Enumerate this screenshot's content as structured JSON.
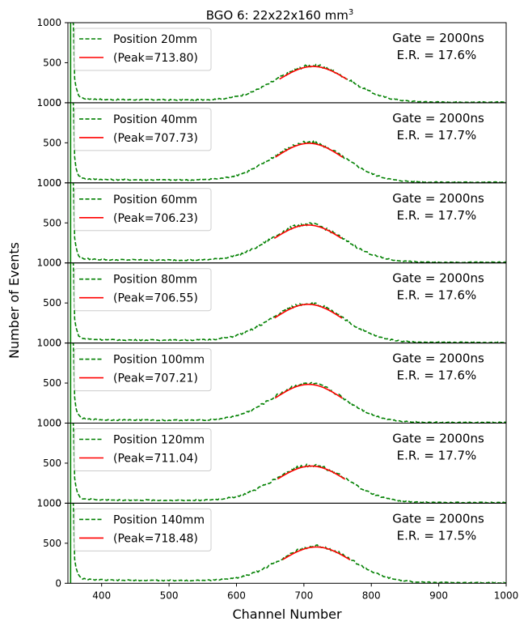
{
  "chart_data": {
    "type": "line",
    "title": "BGO 6: 22x22x160 mm",
    "title_superscript": "3",
    "xlabel": "Channel Number",
    "ylabel": "Number of Events",
    "xlim": [
      350,
      1000
    ],
    "ylim": [
      0,
      1000
    ],
    "x_ticks": [
      400,
      500,
      600,
      700,
      800,
      900,
      1000
    ],
    "y_ticks": [
      0,
      500,
      1000
    ],
    "legend_position": "top-left",
    "colors": {
      "data": "#008000",
      "fit": "#ff0000"
    },
    "panels": [
      {
        "position_label": "Position 20mm",
        "peak_label": "(Peak=713.80)",
        "peak": 713.8,
        "gate_label": "Gate = 2000ns",
        "er_label": "E.R. = 17.6%",
        "amplitude": 450,
        "sigma": 53.4
      },
      {
        "position_label": "Position 40mm",
        "peak_label": "(Peak=707.73)",
        "peak": 707.73,
        "gate_label": "Gate = 2000ns",
        "er_label": "E.R. = 17.7%",
        "amplitude": 490,
        "sigma": 53.2
      },
      {
        "position_label": "Position 60mm",
        "peak_label": "(Peak=706.23)",
        "peak": 706.23,
        "gate_label": "Gate = 2000ns",
        "er_label": "E.R. = 17.7%",
        "amplitude": 470,
        "sigma": 53.2
      },
      {
        "position_label": "Position 80mm",
        "peak_label": "(Peak=706.55)",
        "peak": 706.55,
        "gate_label": "Gate = 2000ns",
        "er_label": "E.R. = 17.6%",
        "amplitude": 480,
        "sigma": 52.9
      },
      {
        "position_label": "Position 100mm",
        "peak_label": "(Peak=707.21)",
        "peak": 707.21,
        "gate_label": "Gate = 2000ns",
        "er_label": "E.R. = 17.6%",
        "amplitude": 480,
        "sigma": 52.9
      },
      {
        "position_label": "Position 120mm",
        "peak_label": "(Peak=711.04)",
        "peak": 711.04,
        "gate_label": "Gate = 2000ns",
        "er_label": "E.R. = 17.7%",
        "amplitude": 460,
        "sigma": 53.4
      },
      {
        "position_label": "Position 140mm",
        "peak_label": "(Peak=718.48)",
        "peak": 718.48,
        "gate_label": "Gate = 2000ns",
        "er_label": "E.R. = 17.5%",
        "amplitude": 450,
        "sigma": 53.4
      }
    ]
  }
}
